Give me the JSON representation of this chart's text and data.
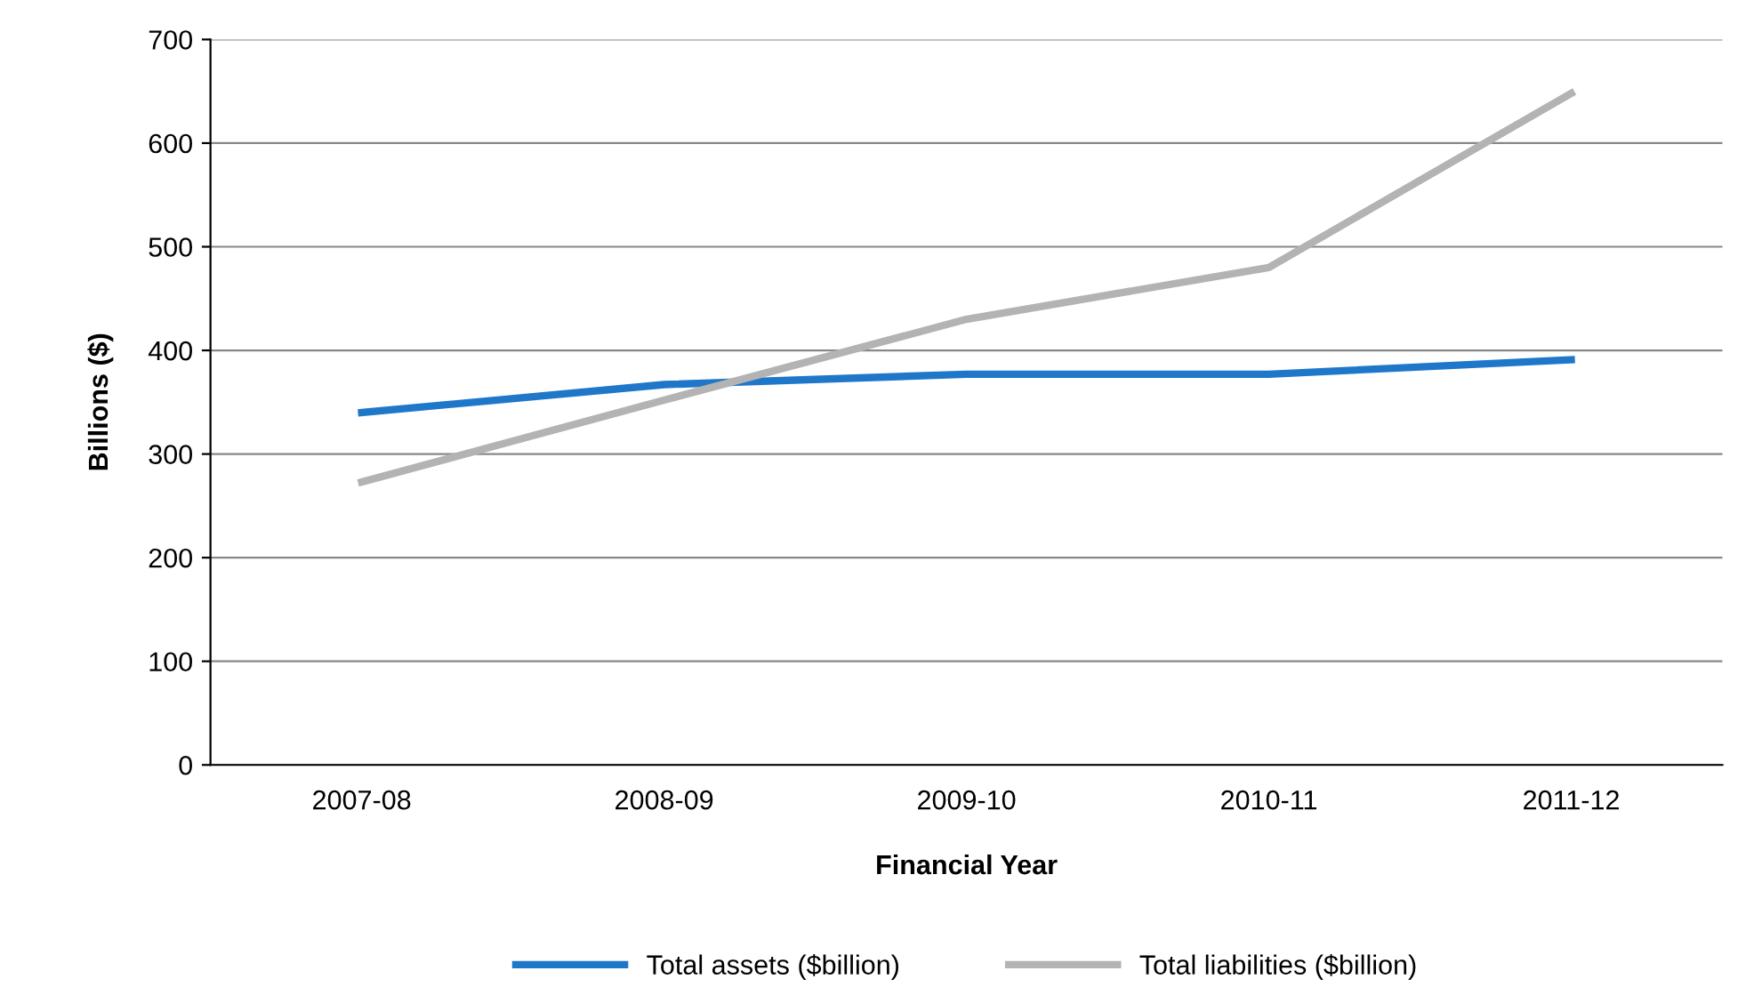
{
  "chart_data": {
    "type": "line",
    "xlabel": "Financial Year",
    "ylabel": "Billions ($)",
    "categories": [
      "2007-08",
      "2008-09",
      "2009-10",
      "2010-11",
      "2011-12"
    ],
    "series": [
      {
        "name": "Total assets ($billion)",
        "color": "#1f77c9",
        "values": [
          340,
          367,
          377,
          377,
          391
        ]
      },
      {
        "name": "Total liabilities ($billion)",
        "color": "#b3b3b3",
        "values": [
          273,
          352,
          430,
          480,
          648
        ]
      }
    ],
    "ylim": [
      0,
      700
    ],
    "yticks": [
      0,
      100,
      200,
      300,
      400,
      500,
      600,
      700
    ],
    "grid": "y",
    "legend": "bottom",
    "marker": "none",
    "line_style": "solid"
  }
}
